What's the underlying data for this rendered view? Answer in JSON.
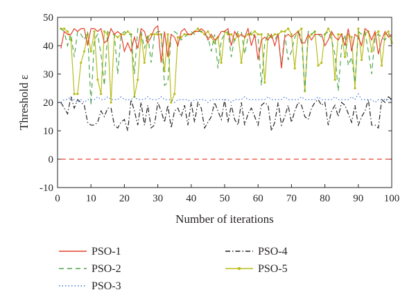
{
  "chart_data": {
    "type": "line",
    "xlabel": "Number of iterations",
    "ylabel": "Threshold ε",
    "xlim": [
      0,
      100
    ],
    "ylim": [
      -10,
      50
    ],
    "xticks": [
      0,
      10,
      20,
      30,
      40,
      50,
      60,
      70,
      80,
      90,
      100
    ],
    "yticks": [
      -10,
      0,
      10,
      20,
      30,
      40,
      50
    ],
    "legend_position": "bottom",
    "x": [
      1,
      2,
      3,
      4,
      5,
      6,
      7,
      8,
      9,
      10,
      11,
      12,
      13,
      14,
      15,
      16,
      17,
      18,
      19,
      20,
      21,
      22,
      23,
      24,
      25,
      26,
      27,
      28,
      29,
      30,
      31,
      32,
      33,
      34,
      35,
      36,
      37,
      38,
      39,
      40,
      41,
      42,
      43,
      44,
      45,
      46,
      47,
      48,
      49,
      50,
      51,
      52,
      53,
      54,
      55,
      56,
      57,
      58,
      59,
      60,
      61,
      62,
      63,
      64,
      65,
      66,
      67,
      68,
      69,
      70,
      71,
      72,
      73,
      74,
      75,
      76,
      77,
      78,
      79,
      80,
      81,
      82,
      83,
      84,
      85,
      86,
      87,
      88,
      89,
      90,
      91,
      92,
      93,
      94,
      95,
      96,
      97,
      98,
      99,
      100
    ],
    "series": [
      {
        "name": "PSO-1",
        "color": "#e3412b",
        "style": "solid",
        "values": [
          39,
          45,
          44,
          44,
          46,
          45,
          46,
          46,
          40,
          46,
          46,
          45,
          46,
          41,
          42,
          46,
          44,
          45,
          44,
          38,
          41,
          38,
          43,
          39,
          46,
          45,
          41,
          43,
          46,
          47,
          34,
          45,
          36,
          44,
          43,
          40,
          45,
          46,
          44,
          44,
          45,
          45,
          46,
          45,
          42,
          44,
          42,
          43,
          45,
          45,
          46,
          40,
          45,
          43,
          44,
          43,
          46,
          40,
          44,
          35,
          42,
          43,
          42,
          44,
          40,
          44,
          32,
          43,
          44,
          43,
          44,
          45,
          41,
          41,
          44,
          42,
          44,
          44,
          44,
          40,
          42,
          45,
          43,
          42,
          44,
          40,
          46,
          38,
          44,
          43,
          40,
          46,
          45,
          42,
          45,
          37,
          42,
          45,
          43,
          44
        ]
      },
      {
        "name": "PSO-2",
        "color": "#4ca64c",
        "style": "dashed",
        "values": [
          46,
          45,
          40,
          44,
          36,
          45,
          44,
          42,
          45,
          19,
          42,
          44,
          37,
          26,
          45,
          44,
          44,
          30,
          44,
          45,
          44,
          44,
          30,
          46,
          45,
          39,
          44,
          34,
          44,
          45,
          45,
          26,
          27,
          44,
          45,
          44,
          42,
          43,
          44,
          45,
          44,
          45,
          45,
          44,
          43,
          38,
          44,
          32,
          42,
          44,
          45,
          36,
          43,
          45,
          45,
          37,
          43,
          45,
          43,
          43,
          26,
          41,
          44,
          43,
          42,
          44,
          33,
          44,
          35,
          38,
          43,
          45,
          43,
          24,
          45,
          44,
          45,
          44,
          43,
          44,
          45,
          42,
          37,
          24,
          40,
          44,
          33,
          36,
          27,
          45,
          44,
          45,
          38,
          30,
          43,
          44,
          43,
          42,
          44,
          43
        ]
      },
      {
        "name": "PSO-3",
        "color": "#3a6fd8",
        "style": "dotted",
        "values": [
          20,
          21,
          21,
          22,
          21,
          20,
          21,
          20,
          21,
          21,
          21,
          22,
          21,
          21,
          22,
          21,
          21,
          21,
          22,
          21,
          21,
          21,
          22,
          21,
          21,
          21,
          22,
          21,
          21,
          21,
          22,
          21,
          21,
          21,
          20,
          21,
          21,
          21,
          21,
          20,
          21,
          21,
          21,
          21,
          20,
          21,
          21,
          21,
          21,
          21,
          21,
          20,
          21,
          21,
          21,
          22,
          21,
          21,
          21,
          21,
          21,
          21,
          22,
          21,
          21,
          21,
          21,
          22,
          21,
          21,
          21,
          21,
          22,
          21,
          21,
          21,
          21,
          22,
          21,
          21,
          21,
          21,
          22,
          21,
          21,
          21,
          21,
          22,
          21,
          23,
          21,
          21,
          21,
          21,
          20,
          21,
          21,
          21,
          21,
          21
        ]
      },
      {
        "name": "PSO-4",
        "color": "#231f20",
        "style": "dashdot",
        "values": [
          20,
          18,
          16,
          22,
          18,
          21,
          20,
          19,
          13,
          12,
          12,
          13,
          17,
          15,
          18,
          18,
          12,
          11,
          13,
          14,
          10,
          21,
          17,
          12,
          20,
          12,
          19,
          11,
          12,
          20,
          17,
          13,
          19,
          11,
          17,
          18,
          15,
          19,
          12,
          20,
          13,
          20,
          18,
          11,
          13,
          15,
          20,
          17,
          14,
          21,
          13,
          19,
          14,
          12,
          20,
          12,
          16,
          18,
          15,
          12,
          19,
          20,
          19,
          10,
          13,
          20,
          12,
          15,
          19,
          13,
          17,
          20,
          19,
          15,
          14,
          18,
          20,
          21,
          19,
          20,
          12,
          17,
          19,
          15,
          20,
          19,
          16,
          13,
          19,
          12,
          15,
          17,
          21,
          12,
          12,
          11,
          21,
          20,
          22,
          21
        ]
      },
      {
        "name": "PSO-5",
        "color": "#b8bd1a",
        "style": "solid-dot",
        "values": [
          46,
          46,
          45,
          42,
          23,
          23,
          34,
          38,
          44,
          38,
          45,
          28,
          23,
          45,
          44,
          20,
          44,
          43,
          44,
          44,
          45,
          44,
          22,
          28,
          44,
          34,
          43,
          44,
          44,
          44,
          44,
          31,
          44,
          20,
          23,
          43,
          43,
          44,
          44,
          44,
          45,
          46,
          45,
          44,
          45,
          43,
          41,
          43,
          34,
          45,
          44,
          44,
          42,
          44,
          34,
          43,
          44,
          44,
          45,
          44,
          44,
          27,
          44,
          43,
          44,
          44,
          45,
          45,
          46,
          44,
          32,
          45,
          46,
          24,
          43,
          44,
          45,
          33,
          34,
          44,
          46,
          44,
          28,
          44,
          44,
          36,
          44,
          43,
          25,
          46,
          35,
          44,
          45,
          38,
          44,
          45,
          33,
          44,
          45,
          41
        ]
      },
      {
        "name": "",
        "color": "#e3412b",
        "style": "dashed",
        "values": [
          0,
          0,
          0,
          0,
          0,
          0,
          0,
          0,
          0,
          0,
          0,
          0,
          0,
          0,
          0,
          0,
          0,
          0,
          0,
          0,
          0,
          0,
          0,
          0,
          0,
          0,
          0,
          0,
          0,
          0,
          0,
          0,
          0,
          0,
          0,
          0,
          0,
          0,
          0,
          0,
          0,
          0,
          0,
          0,
          0,
          0,
          0,
          0,
          0,
          0,
          0,
          0,
          0,
          0,
          0,
          0,
          0,
          0,
          0,
          0,
          0,
          0,
          0,
          0,
          0,
          0,
          0,
          0,
          0,
          0,
          0,
          0,
          0,
          0,
          0,
          0,
          0,
          0,
          0,
          0,
          0,
          0,
          0,
          0,
          0,
          0,
          0,
          0,
          0,
          0,
          0,
          0,
          0,
          0,
          0,
          0,
          0,
          0,
          0,
          0
        ]
      }
    ]
  }
}
